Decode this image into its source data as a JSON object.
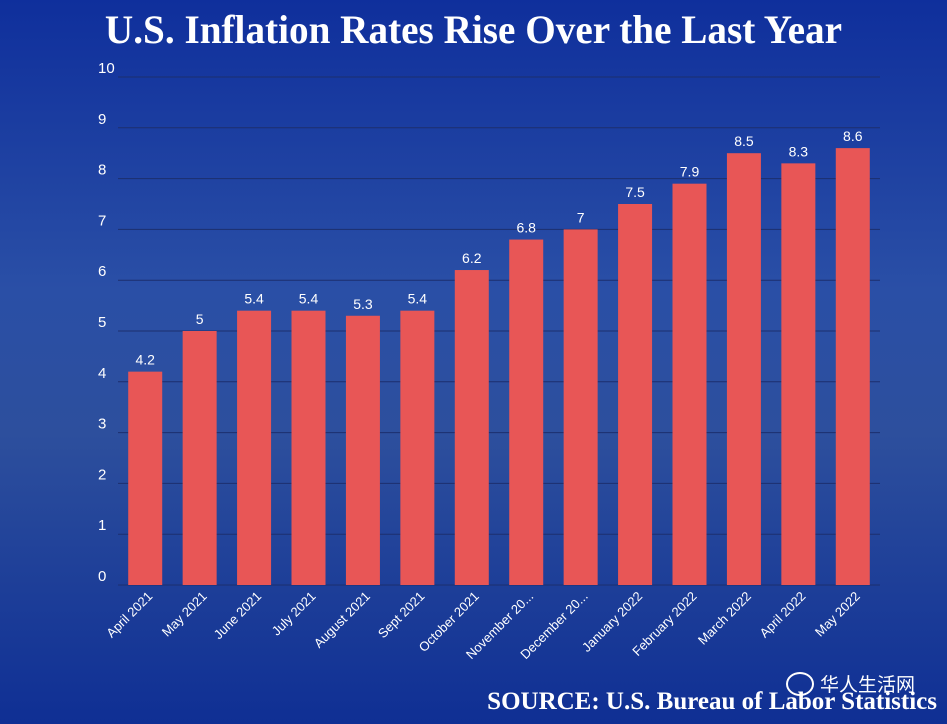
{
  "chart_data": {
    "type": "bar",
    "title": "U.S. Inflation Rates Rise Over the Last Year",
    "categories": [
      "April 2021",
      "May 2021",
      "June 2021",
      "July 2021",
      "August 2021",
      "Sept 2021",
      "October 2021",
      "November 20...",
      "December 20...",
      "January 2022",
      "February 2022",
      "March 2022",
      "April 2022",
      "May 2022"
    ],
    "values": [
      4.2,
      5,
      5.4,
      5.4,
      5.3,
      5.4,
      6.2,
      6.8,
      7,
      7.5,
      7.9,
      8.5,
      8.3,
      8.6
    ],
    "data_labels": [
      "4.2",
      "5",
      "5.4",
      "5.4",
      "5.3",
      "5.4",
      "6.2",
      "6.8",
      "7",
      "7.5",
      "7.9",
      "8.5",
      "8.3",
      "8.6"
    ],
    "yticks": [
      "0",
      "1",
      "2",
      "3",
      "4",
      "5",
      "6",
      "7",
      "8",
      "9",
      "10"
    ],
    "ylim": [
      0,
      10
    ],
    "xlabel": "",
    "ylabel": "",
    "grid": true,
    "colors": {
      "bar": "#e85656",
      "grid": "#1c2f6e",
      "text": "#ffffff"
    }
  },
  "source": "SOURCE: U.S. Bureau of Labor Statistics",
  "watermark": "华人生活网"
}
